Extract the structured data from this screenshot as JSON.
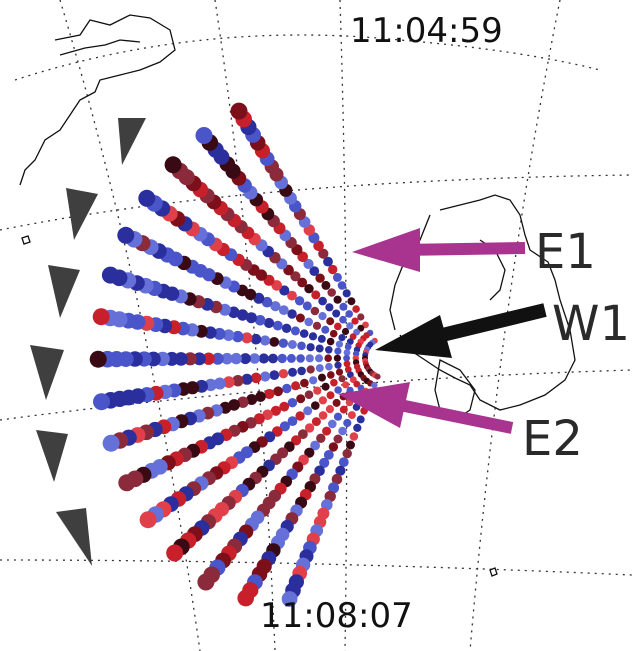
{
  "labels": {
    "time_top": "11:04:59",
    "time_bottom": "11:08:07",
    "arrows": [
      {
        "id": "E1",
        "text": "E1",
        "color": "#a8348f"
      },
      {
        "id": "W1",
        "text": "W1",
        "color": "#111111"
      },
      {
        "id": "E2",
        "text": "E2",
        "color": "#a8348f"
      }
    ]
  },
  "colors": {
    "dot_palette": [
      "#2b2f9e",
      "#4a55c9",
      "#6570d8",
      "#c8202a",
      "#e0404a",
      "#7d0f1a",
      "#3a0a14",
      "#8a2a3a"
    ],
    "coastline": "#111111",
    "grid": "#333333",
    "triangle_marker": "#3f3f3f"
  }
}
